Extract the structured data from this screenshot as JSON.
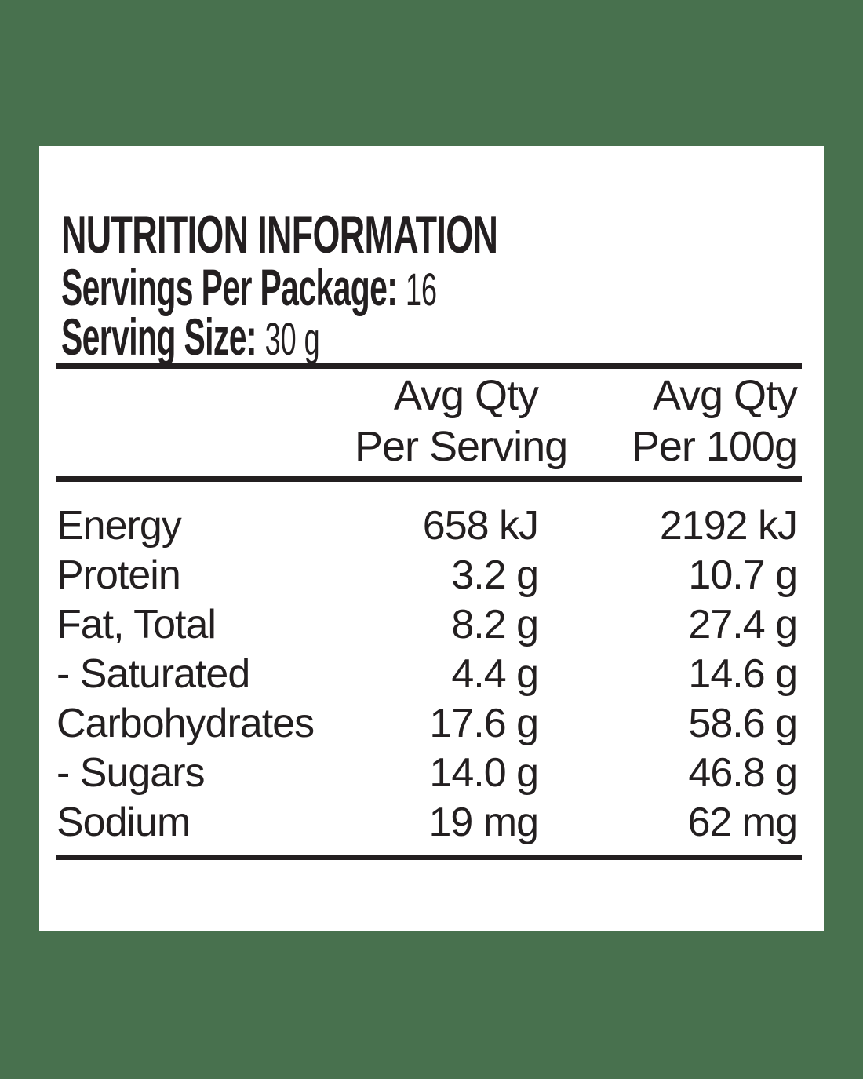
{
  "colors": {
    "background": "#48714E",
    "panel": "#FFFFFF",
    "text": "#231F20"
  },
  "label": {
    "title": "NUTRITION INFORMATION",
    "servings_per_package_label": "Servings Per Package:",
    "servings_per_package_value": "16",
    "serving_size_label": "Serving Size:",
    "serving_size_value": "30 g"
  },
  "table": {
    "col_per_serving": {
      "line1": "Avg Qty",
      "line2": "Per Serving"
    },
    "col_per_100g": {
      "line1": "Avg Qty",
      "line2": "Per 100g"
    },
    "rows": [
      {
        "nutrient": "Energy",
        "per_serving": "658 kJ",
        "per_100g": "2192 kJ"
      },
      {
        "nutrient": "Protein",
        "per_serving": "3.2 g",
        "per_100g": "10.7 g"
      },
      {
        "nutrient": "Fat, Total",
        "per_serving": "8.2 g",
        "per_100g": "27.4 g"
      },
      {
        "nutrient": "- Saturated",
        "per_serving": "4.4 g",
        "per_100g": "14.6 g"
      },
      {
        "nutrient": "Carbohydrates",
        "per_serving": "17.6 g",
        "per_100g": "58.6 g"
      },
      {
        "nutrient": "- Sugars",
        "per_serving": "14.0 g",
        "per_100g": "46.8 g"
      },
      {
        "nutrient": "Sodium",
        "per_serving": "19 mg",
        "per_100g": "62 mg"
      }
    ]
  }
}
